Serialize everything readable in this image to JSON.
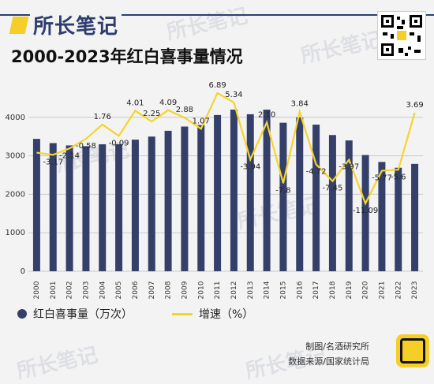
{
  "header": {
    "brand": "所长笔记",
    "title": "2000-2023年红白喜事量情况"
  },
  "footer": {
    "credit_line1": "制图/名酒研究所",
    "credit_line2": "数据来源/国家统计局"
  },
  "colors": {
    "bar": "#35406a",
    "line": "#f5d42b",
    "brand": "#2d3e6e"
  },
  "icons": [
    "qr-code-icon",
    "brand-logo-icon",
    "mingjiu-logo-icon"
  ],
  "chart_data": {
    "type": "bar",
    "categories": [
      "2000",
      "2001",
      "2002",
      "2003",
      "2004",
      "2005",
      "2006",
      "2007",
      "2008",
      "2009",
      "2010",
      "2011",
      "2012",
      "2013",
      "2014",
      "2015",
      "2016",
      "2017",
      "2018",
      "2019",
      "2020",
      "2021",
      "2022",
      "2023"
    ],
    "ylim": [
      0,
      5000
    ],
    "yticks": [
      0,
      1000,
      2000,
      3000,
      4000
    ],
    "grid": true,
    "legend_position": "bottom-left",
    "series": [
      {
        "name": "红白喜事量（万次）",
        "type": "bar",
        "values": [
          3440,
          3330,
          3270,
          3250,
          3300,
          3300,
          3420,
          3500,
          3650,
          3760,
          3800,
          4060,
          4200,
          4080,
          4200,
          3860,
          4000,
          3810,
          3540,
          3400,
          3020,
          2840,
          2690,
          2790
        ]
      },
      {
        "name": "增速（%）",
        "type": "line",
        "values": [
          null,
          -3.17,
          -2.14,
          -0.58,
          1.76,
          -0.09,
          4.01,
          2.25,
          4.09,
          2.88,
          1.07,
          6.89,
          5.34,
          -3.94,
          2.1,
          -7.8,
          3.84,
          -4.72,
          -7.45,
          -3.97,
          -11.09,
          -5.77,
          -5.6,
          3.69
        ],
        "labels": [
          "",
          "-3.17",
          "-2.14",
          "-0.58",
          "1.76",
          "-0.09",
          "4.01",
          "2.25",
          "4.09",
          "2.88",
          "1.07",
          "6.89",
          "5.34",
          "-3.94",
          "2.10",
          "-7.8",
          "3.84",
          "-4.72",
          "-7.45",
          "-3.97",
          "-11.09",
          "-5.77",
          "-5.6",
          "3.69"
        ]
      }
    ]
  }
}
